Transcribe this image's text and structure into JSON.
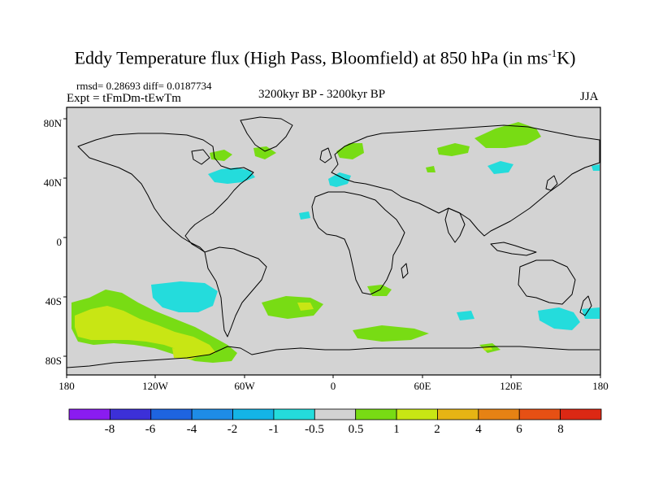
{
  "title": {
    "main": "Eddy Temperature flux (High Pass, Bloomfield) at 850 hPa (in ms",
    "sup": "-1",
    "tail": "K)"
  },
  "stats": {
    "rmsd": "rmsd= 0.28693 diff= 0.0187734",
    "expt": "Expt = tFmDm-tEwTm",
    "period": "3200kyr BP - 3200kyr BP",
    "season": "JJA"
  },
  "axes": {
    "lat_labels": [
      "80N",
      "40N",
      "0",
      "40S",
      "80S"
    ],
    "lon_labels": [
      "180",
      "120W",
      "60W",
      "0",
      "60E",
      "120E",
      "180"
    ]
  },
  "colorbar": {
    "labels": [
      "-8",
      "-6",
      "-4",
      "-2",
      "-1",
      "-0.5",
      "0.5",
      "1",
      "2",
      "4",
      "6",
      "8"
    ],
    "colors": [
      "#8a1cf0",
      "#3c30d8",
      "#1e64e0",
      "#1e8ce6",
      "#14b4e6",
      "#24dcdc",
      "#d2d2d2",
      "#78dc14",
      "#c8e614",
      "#e6b414",
      "#e68214",
      "#e65014",
      "#dc2814"
    ]
  },
  "map": {
    "ocean_color": "#d3d3d3",
    "coast_color": "#000000"
  }
}
